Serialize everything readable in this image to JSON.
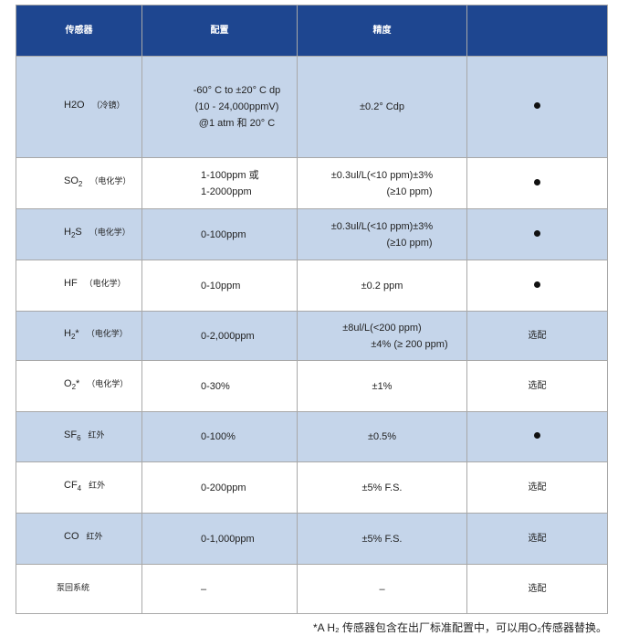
{
  "headers": [
    "传感器",
    "配置",
    "精度",
    ""
  ],
  "rows": [
    {
      "name": "H2O",
      "sub": "",
      "sup": "",
      "method": "（冷镜）",
      "config": [
        "-60° C to ±20° C dp",
        "(10 - 24,000ppmV)",
        "@1 atm 和 20° C"
      ],
      "accuracy": [
        "±0.2° Cdp"
      ],
      "option": "●"
    },
    {
      "name": "SO",
      "sub": "2",
      "sup": "",
      "method": "（电化学）",
      "config": [
        "1-100ppm 或",
        "1-2000ppm"
      ],
      "accuracy": [
        "±0.3ul/L(<10 ppm)±3%",
        "(≥10 ppm)"
      ],
      "option": "●"
    },
    {
      "name": "H",
      "sub": "2",
      "sup": "S",
      "method": "（电化学）",
      "config": [
        "0-100ppm"
      ],
      "accuracy": [
        "±0.3ul/L(<10 ppm)±3%",
        "(≥10 ppm)"
      ],
      "option": "●"
    },
    {
      "name": "HF",
      "sub": "",
      "sup": "",
      "method": "（电化学）",
      "config": [
        "0-10ppm"
      ],
      "accuracy": [
        "±0.2 ppm"
      ],
      "option": "●"
    },
    {
      "name": "H",
      "sub": "2",
      "sup": "*",
      "method": "（电化学）",
      "config": [
        "0-2,000ppm"
      ],
      "accuracy": [
        "±8ul/L(<200 ppm)",
        "±4% (≥ 200 ppm)"
      ],
      "option": "选配"
    },
    {
      "name": "O",
      "sub": "2",
      "sup": "*",
      "method": "（电化学）",
      "config": [
        "0-30%"
      ],
      "accuracy": [
        "±1%"
      ],
      "option": "选配"
    },
    {
      "name": "SF",
      "sub": "6",
      "sup": "",
      "method": "红外",
      "config": [
        "0-100%"
      ],
      "accuracy": [
        "±0.5%"
      ],
      "option": "●"
    },
    {
      "name": "CF",
      "sub": "4",
      "sup": "",
      "method": "红外",
      "config": [
        "0-200ppm"
      ],
      "accuracy": [
        "±5% F.S."
      ],
      "option": "选配"
    },
    {
      "name": "CO",
      "sub": "",
      "sup": "",
      "method": "红外",
      "config": [
        "0-1,000ppm"
      ],
      "accuracy": [
        "±5% F.S."
      ],
      "option": "选配"
    },
    {
      "name": "泵回系统",
      "sub": "",
      "sup": "",
      "method": "",
      "config": [
        "–"
      ],
      "accuracy": [
        "–"
      ],
      "option": "选配"
    }
  ],
  "footnote": "*A H₂ 传感器包含在出厂标准配置中，可以用O₂传感器替换。"
}
